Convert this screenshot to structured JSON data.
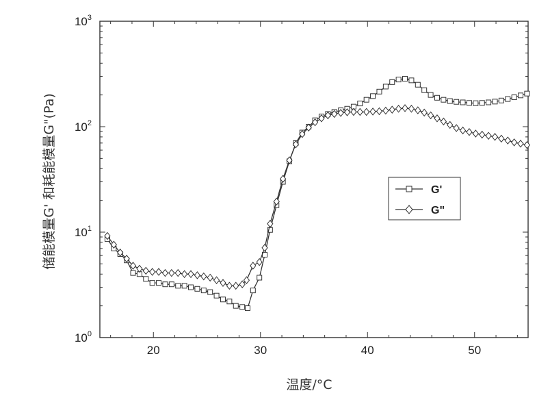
{
  "chart_data": {
    "type": "line",
    "xlabel": "温度/°C",
    "ylabel": "储能模量G' 和耗能模量G\"(Pa)",
    "xlim": [
      15,
      55
    ],
    "ylim": [
      1,
      1000
    ],
    "yscale": "log",
    "x_ticks": [
      20,
      30,
      40,
      50
    ],
    "y_ticks": [
      {
        "base": "10",
        "exp": "0",
        "value": 1
      },
      {
        "base": "10",
        "exp": "1",
        "value": 10
      },
      {
        "base": "10",
        "exp": "2",
        "value": 100
      },
      {
        "base": "10",
        "exp": "3",
        "value": 1000
      }
    ],
    "grid": false,
    "legend_position": "right",
    "series": [
      {
        "name": "G'",
        "marker": "square",
        "color": "#333333",
        "points": [
          [
            15.7,
            8.6
          ],
          [
            16.3,
            7.0
          ],
          [
            16.9,
            6.2
          ],
          [
            17.5,
            5.4
          ],
          [
            18.1,
            4.1
          ],
          [
            18.7,
            4.0
          ],
          [
            19.3,
            3.6
          ],
          [
            19.9,
            3.3
          ],
          [
            20.5,
            3.3
          ],
          [
            21.1,
            3.2
          ],
          [
            21.7,
            3.2
          ],
          [
            22.3,
            3.1
          ],
          [
            22.9,
            3.1
          ],
          [
            23.5,
            3.0
          ],
          [
            24.1,
            2.9
          ],
          [
            24.7,
            2.8
          ],
          [
            25.3,
            2.7
          ],
          [
            25.9,
            2.5
          ],
          [
            26.5,
            2.3
          ],
          [
            27.1,
            2.2
          ],
          [
            27.7,
            2.0
          ],
          [
            28.3,
            1.95
          ],
          [
            28.8,
            1.9
          ],
          [
            29.3,
            2.8
          ],
          [
            29.9,
            3.7
          ],
          [
            30.4,
            6.1
          ],
          [
            30.9,
            10.5
          ],
          [
            31.5,
            18.0
          ],
          [
            32.1,
            30.0
          ],
          [
            32.7,
            47.0
          ],
          [
            33.3,
            70.0
          ],
          [
            33.9,
            88.0
          ],
          [
            34.5,
            100.0
          ],
          [
            35.1,
            115.0
          ],
          [
            35.7,
            125.0
          ],
          [
            36.3,
            132.0
          ],
          [
            36.9,
            138.0
          ],
          [
            37.5,
            143.0
          ],
          [
            38.1,
            148.0
          ],
          [
            38.7,
            155.0
          ],
          [
            39.3,
            166.0
          ],
          [
            39.9,
            180.0
          ],
          [
            40.5,
            195.0
          ],
          [
            41.1,
            215.0
          ],
          [
            41.7,
            240.0
          ],
          [
            42.3,
            265.0
          ],
          [
            42.9,
            280.0
          ],
          [
            43.5,
            285.0
          ],
          [
            44.1,
            275.0
          ],
          [
            44.7,
            250.0
          ],
          [
            45.3,
            222.0
          ],
          [
            45.9,
            200.0
          ],
          [
            46.5,
            188.0
          ],
          [
            47.1,
            180.0
          ],
          [
            47.7,
            175.0
          ],
          [
            48.3,
            172.0
          ],
          [
            48.9,
            170.0
          ],
          [
            49.5,
            168.0
          ],
          [
            50.1,
            167.0
          ],
          [
            50.7,
            168.0
          ],
          [
            51.3,
            170.0
          ],
          [
            51.9,
            173.0
          ],
          [
            52.5,
            177.0
          ],
          [
            53.1,
            183.0
          ],
          [
            53.7,
            190.0
          ],
          [
            54.3,
            198.0
          ],
          [
            54.9,
            206.0
          ]
        ]
      },
      {
        "name": "G\"",
        "marker": "diamond",
        "color": "#333333",
        "points": [
          [
            15.7,
            9.2
          ],
          [
            16.3,
            7.6
          ],
          [
            16.9,
            6.4
          ],
          [
            17.5,
            5.6
          ],
          [
            18.1,
            4.8
          ],
          [
            18.7,
            4.5
          ],
          [
            19.3,
            4.3
          ],
          [
            19.9,
            4.2
          ],
          [
            20.5,
            4.2
          ],
          [
            21.1,
            4.1
          ],
          [
            21.7,
            4.1
          ],
          [
            22.3,
            4.1
          ],
          [
            22.9,
            4.0
          ],
          [
            23.5,
            4.0
          ],
          [
            24.1,
            3.9
          ],
          [
            24.7,
            3.8
          ],
          [
            25.3,
            3.7
          ],
          [
            25.9,
            3.5
          ],
          [
            26.5,
            3.3
          ],
          [
            27.1,
            3.1
          ],
          [
            27.7,
            3.1
          ],
          [
            28.3,
            3.2
          ],
          [
            28.7,
            3.5
          ],
          [
            29.3,
            4.8
          ],
          [
            29.9,
            5.2
          ],
          [
            30.4,
            7.1
          ],
          [
            30.9,
            12.0
          ],
          [
            31.5,
            19.5
          ],
          [
            32.1,
            32.0
          ],
          [
            32.7,
            48.0
          ],
          [
            33.3,
            68.0
          ],
          [
            33.9,
            85.0
          ],
          [
            34.5,
            98.0
          ],
          [
            35.1,
            110.0
          ],
          [
            35.7,
            120.0
          ],
          [
            36.3,
            128.0
          ],
          [
            36.9,
            132.0
          ],
          [
            37.5,
            135.0
          ],
          [
            38.1,
            137.0
          ],
          [
            38.7,
            138.0
          ],
          [
            39.3,
            138.0
          ],
          [
            39.9,
            138.0
          ],
          [
            40.5,
            139.0
          ],
          [
            41.1,
            140.0
          ],
          [
            41.7,
            142.0
          ],
          [
            42.3,
            145.0
          ],
          [
            42.9,
            148.0
          ],
          [
            43.5,
            150.0
          ],
          [
            44.1,
            148.0
          ],
          [
            44.7,
            143.0
          ],
          [
            45.3,
            136.0
          ],
          [
            45.9,
            128.0
          ],
          [
            46.5,
            120.0
          ],
          [
            47.1,
            112.0
          ],
          [
            47.7,
            104.0
          ],
          [
            48.3,
            97.0
          ],
          [
            48.9,
            92.0
          ],
          [
            49.5,
            89.0
          ],
          [
            50.1,
            86.0
          ],
          [
            50.7,
            84.0
          ],
          [
            51.3,
            82.0
          ],
          [
            51.9,
            80.0
          ],
          [
            52.5,
            77.0
          ],
          [
            53.1,
            74.0
          ],
          [
            53.7,
            71.0
          ],
          [
            54.3,
            69.0
          ],
          [
            54.9,
            67.0
          ]
        ]
      }
    ]
  }
}
